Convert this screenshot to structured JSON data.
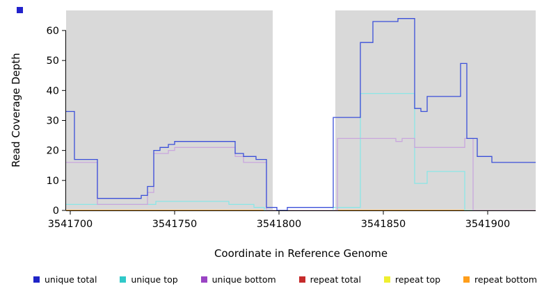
{
  "window": {
    "background": "#ffffff"
  },
  "corner_marker": {
    "color": "#2222CC"
  },
  "chart_data": {
    "type": "line",
    "style": "step",
    "title": "",
    "xlabel": "Coordinate in Reference Genome",
    "ylabel": "Read Coverage Depth",
    "xlim": [
      3541698,
      3541923
    ],
    "ylim": [
      0,
      66.7
    ],
    "x_ticks": [
      3541700,
      3541750,
      3541800,
      3541850,
      3541900
    ],
    "y_ticks": [
      0,
      10,
      20,
      30,
      40,
      50,
      60
    ],
    "panel_color": "#d9d9d9",
    "axis_color": "#000000",
    "highlight_gap": {
      "x0": 3541797,
      "x1": 3541827,
      "color": "#ffffff"
    },
    "series": [
      {
        "name": "repeat total",
        "line_color": "#C62B2B",
        "points": [
          [
            3541698,
            0
          ],
          [
            3541923,
            0
          ]
        ]
      },
      {
        "name": "repeat top",
        "line_color": "#EFEF30",
        "points": [
          [
            3541698,
            0
          ],
          [
            3541923,
            0
          ]
        ]
      },
      {
        "name": "repeat bottom",
        "line_color": "#FFA21F",
        "points": [
          [
            3541698,
            0
          ],
          [
            3541923,
            0
          ]
        ]
      },
      {
        "name": "unique top",
        "line_color": "#8AE6E6",
        "points": [
          [
            3541698,
            2
          ],
          [
            3541741,
            3
          ],
          [
            3541776,
            2
          ],
          [
            3541788,
            1
          ],
          [
            3541793,
            0
          ],
          [
            3541826,
            1
          ],
          [
            3541839,
            39
          ],
          [
            3541865,
            9
          ],
          [
            3541871,
            13
          ],
          [
            3541889,
            0
          ],
          [
            3541923,
            0
          ]
        ]
      },
      {
        "name": "unique bottom",
        "line_color": "#C9A6DD",
        "points": [
          [
            3541698,
            16
          ],
          [
            3541713,
            2
          ],
          [
            3541737,
            6
          ],
          [
            3541740,
            19
          ],
          [
            3541747,
            20
          ],
          [
            3541750,
            21
          ],
          [
            3541779,
            18
          ],
          [
            3541783,
            16
          ],
          [
            3541794,
            0
          ],
          [
            3541828,
            24
          ],
          [
            3541856,
            23
          ],
          [
            3541859,
            24
          ],
          [
            3541865,
            21
          ],
          [
            3541889,
            24
          ],
          [
            3541893,
            0
          ],
          [
            3541923,
            0
          ]
        ]
      },
      {
        "name": "unique total",
        "line_color": "#3A4FD9",
        "points": [
          [
            3541698,
            33
          ],
          [
            3541702,
            17
          ],
          [
            3541713,
            4
          ],
          [
            3541734,
            5
          ],
          [
            3541737,
            8
          ],
          [
            3541740,
            20
          ],
          [
            3541743,
            21
          ],
          [
            3541747,
            22
          ],
          [
            3541750,
            23
          ],
          [
            3541779,
            19
          ],
          [
            3541783,
            18
          ],
          [
            3541789,
            17
          ],
          [
            3541794,
            1
          ],
          [
            3541799,
            0
          ],
          [
            3541804,
            1
          ],
          [
            3541826,
            31
          ],
          [
            3541839,
            56
          ],
          [
            3541845,
            63
          ],
          [
            3541857,
            64
          ],
          [
            3541865,
            34
          ],
          [
            3541868,
            33
          ],
          [
            3541871,
            38
          ],
          [
            3541887,
            49
          ],
          [
            3541890,
            24
          ],
          [
            3541895,
            18
          ],
          [
            3541902,
            16
          ],
          [
            3541923,
            16
          ]
        ]
      }
    ],
    "legend": [
      {
        "label": "unique total",
        "color": "#1F24C7"
      },
      {
        "label": "unique top",
        "color": "#30C9C9"
      },
      {
        "label": "unique bottom",
        "color": "#9A44C4"
      },
      {
        "label": "repeat total",
        "color": "#C62B2B"
      },
      {
        "label": "repeat top",
        "color": "#EFEF30"
      },
      {
        "label": "repeat bottom",
        "color": "#FF9E1B"
      }
    ]
  }
}
